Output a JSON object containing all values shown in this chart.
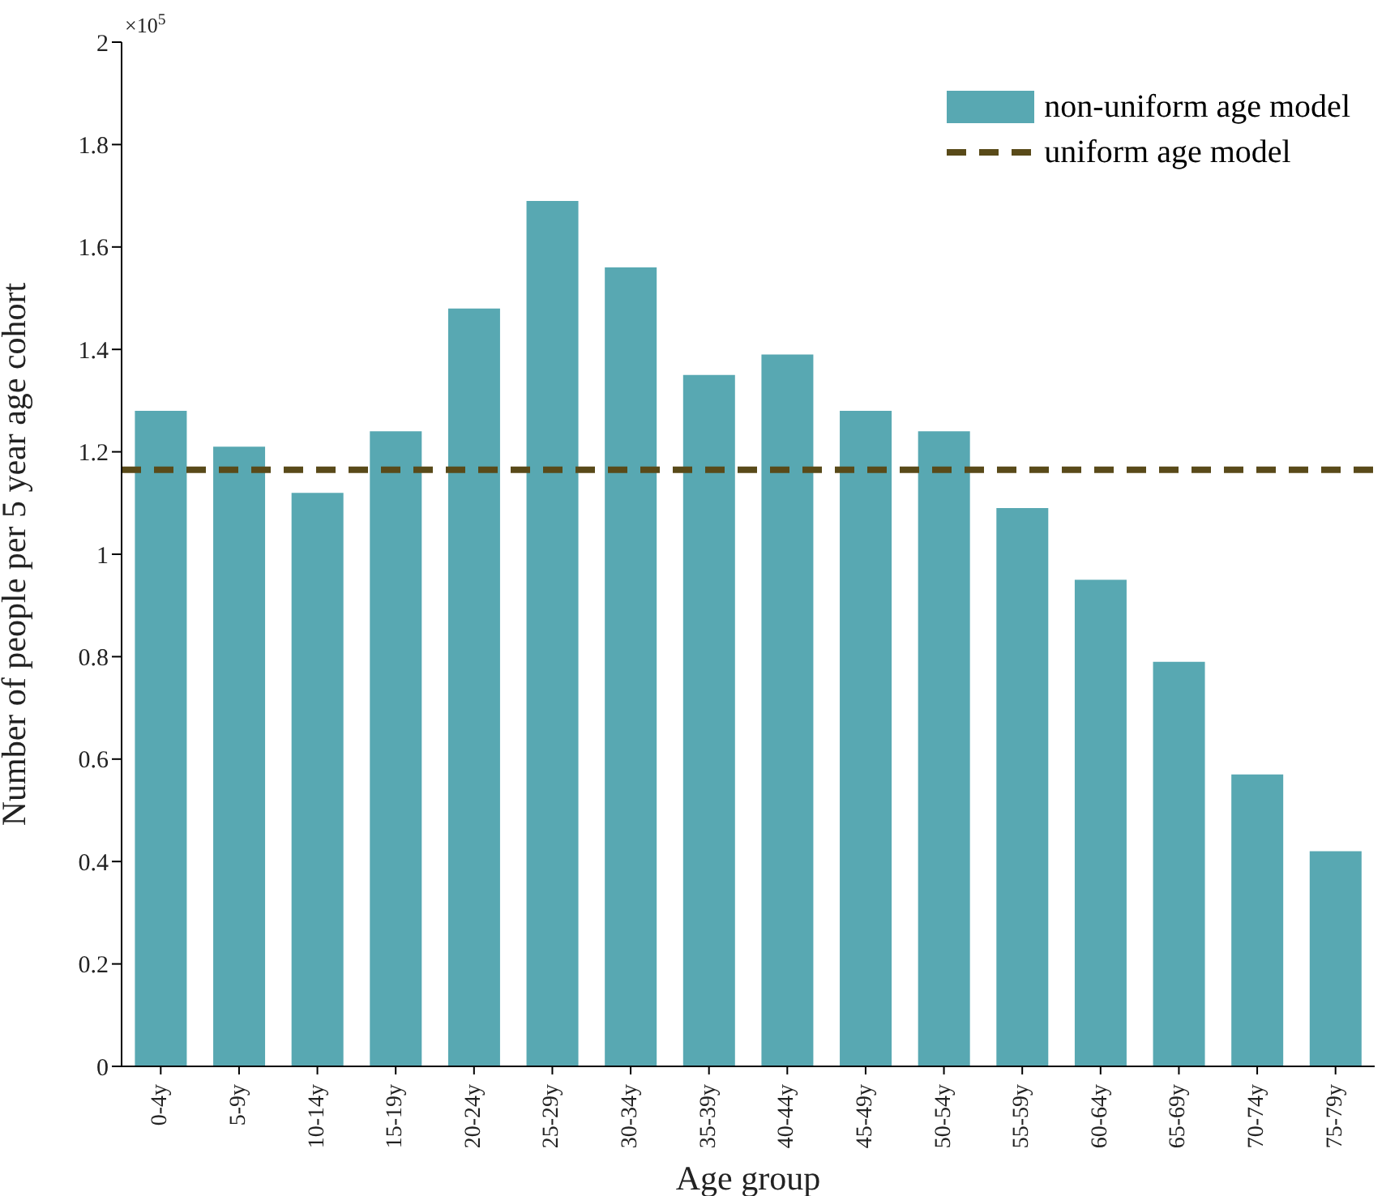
{
  "chart_data": {
    "type": "bar",
    "xlabel": "Age group",
    "ylabel": "Number of people per 5 year age cohort",
    "categories": [
      "0-4y",
      "5-9y",
      "10-14y",
      "15-19y",
      "20-24y",
      "25-29y",
      "30-34y",
      "35-39y",
      "40-44y",
      "45-49y",
      "50-54y",
      "55-59y",
      "60-64y",
      "65-69y",
      "70-74y",
      "75-79y"
    ],
    "series": [
      {
        "name": "non-uniform age model",
        "color": "#58a8b2",
        "values": [
          1.28,
          1.21,
          1.12,
          1.24,
          1.48,
          1.69,
          1.56,
          1.35,
          1.39,
          1.28,
          1.24,
          1.09,
          0.95,
          0.79,
          0.57,
          0.42
        ]
      }
    ],
    "ref_lines": [
      {
        "axis": "y",
        "value": 1.165,
        "label": "uniform age model",
        "color": "#594a19",
        "line_style": "dashed"
      }
    ],
    "ylim": [
      0,
      2
    ],
    "yticks": [
      0,
      0.2,
      0.4,
      0.6,
      0.8,
      1,
      1.2,
      1.4,
      1.6,
      1.8,
      2
    ],
    "annotations": [
      "×10$^{5}$"
    ],
    "grid": false,
    "legend": "top right"
  }
}
